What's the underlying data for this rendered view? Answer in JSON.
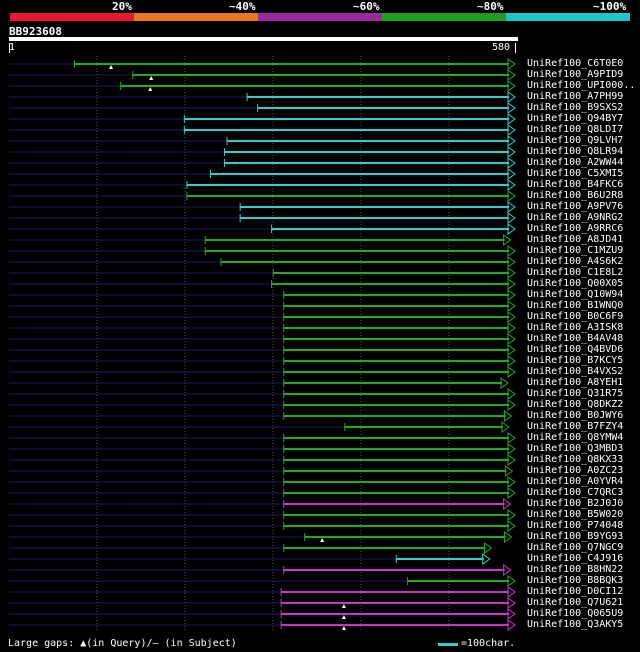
{
  "legend": [
    {
      "label": "20%",
      "color": "#e8192c"
    },
    {
      "label": "~40%",
      "color": "#e87820"
    },
    {
      "label": "~60%",
      "color": "#9c2a9e"
    },
    {
      "label": "~80%",
      "color": "#1e9e1e"
    },
    {
      "label": "~100%",
      "color": "#1ec8c8"
    }
  ],
  "query": {
    "id": "BB923608",
    "start": "1",
    "end": "580"
  },
  "colors": {
    "green": "#22aa22",
    "cyan": "#33cccc",
    "magenta": "#cc33cc",
    "dark": "#1a1a66",
    "grid": "#555555",
    "gap_marker": "#ffffff"
  },
  "hits": [
    {
      "name": "UniRef100_C6T0E0",
      "color": "green",
      "start": 76,
      "end": 580,
      "gaps": [
        118
      ]
    },
    {
      "name": "UniRef100_A9PID9",
      "color": "green",
      "start": 143,
      "end": 580,
      "gaps": [
        164
      ]
    },
    {
      "name": "UniRef100_UPI000..",
      "color": "green",
      "start": 129,
      "end": 580,
      "gaps": [
        163
      ]
    },
    {
      "name": "UniRef100_A7PH99",
      "color": "cyan",
      "start": 274,
      "end": 580,
      "gaps": []
    },
    {
      "name": "UniRef100_B9SXS2",
      "color": "cyan",
      "start": 286,
      "end": 580,
      "gaps": []
    },
    {
      "name": "UniRef100_Q94BY7",
      "color": "cyan",
      "start": 202,
      "end": 580,
      "gaps": []
    },
    {
      "name": "UniRef100_Q8LDI7",
      "color": "cyan",
      "start": 202,
      "end": 580,
      "gaps": []
    },
    {
      "name": "UniRef100_Q9LVH7",
      "color": "cyan",
      "start": 251,
      "end": 580,
      "gaps": []
    },
    {
      "name": "UniRef100_Q8LR94",
      "color": "cyan",
      "start": 248,
      "end": 580,
      "gaps": []
    },
    {
      "name": "UniRef100_A2WW44",
      "color": "cyan",
      "start": 248,
      "end": 580,
      "gaps": []
    },
    {
      "name": "UniRef100_C5XMI5",
      "color": "cyan",
      "start": 232,
      "end": 580,
      "gaps": []
    },
    {
      "name": "UniRef100_B4FKC6",
      "color": "cyan",
      "start": 205,
      "end": 580,
      "gaps": []
    },
    {
      "name": "UniRef100_B6U2R8",
      "color": "green",
      "start": 205,
      "end": 580,
      "gaps": []
    },
    {
      "name": "UniRef100_A9PV76",
      "color": "cyan",
      "start": 266,
      "end": 580,
      "gaps": []
    },
    {
      "name": "UniRef100_A9NRG2",
      "color": "cyan",
      "start": 266,
      "end": 580,
      "gaps": []
    },
    {
      "name": "UniRef100_A9RRC6",
      "color": "cyan",
      "start": 302,
      "end": 580,
      "gaps": []
    },
    {
      "name": "UniRef100_A8JD41",
      "color": "green",
      "start": 226,
      "end": 575,
      "gaps": []
    },
    {
      "name": "UniRef100_C1MZU9",
      "color": "green",
      "start": 226,
      "end": 580,
      "gaps": []
    },
    {
      "name": "UniRef100_A4S6K2",
      "color": "green",
      "start": 244,
      "end": 580,
      "gaps": []
    },
    {
      "name": "UniRef100_C1E8L2",
      "color": "green",
      "start": 304,
      "end": 580,
      "gaps": []
    },
    {
      "name": "UniRef100_Q00X05",
      "color": "green",
      "start": 302,
      "end": 580,
      "gaps": []
    },
    {
      "name": "UniRef100_Q10W94",
      "color": "green",
      "start": 316,
      "end": 580,
      "gaps": []
    },
    {
      "name": "UniRef100_B1WNQ0",
      "color": "green",
      "start": 316,
      "end": 580,
      "gaps": []
    },
    {
      "name": "UniRef100_B0C6F9",
      "color": "green",
      "start": 316,
      "end": 580,
      "gaps": []
    },
    {
      "name": "UniRef100_A3ISK8",
      "color": "green",
      "start": 316,
      "end": 580,
      "gaps": []
    },
    {
      "name": "UniRef100_B4AV48",
      "color": "green",
      "start": 316,
      "end": 580,
      "gaps": []
    },
    {
      "name": "UniRef100_Q4BVD6",
      "color": "green",
      "start": 316,
      "end": 580,
      "gaps": []
    },
    {
      "name": "UniRef100_B7KCY5",
      "color": "green",
      "start": 316,
      "end": 580,
      "gaps": []
    },
    {
      "name": "UniRef100_B4VXS2",
      "color": "green",
      "start": 316,
      "end": 580,
      "gaps": []
    },
    {
      "name": "UniRef100_A8YEH1",
      "color": "green",
      "start": 316,
      "end": 572,
      "gaps": []
    },
    {
      "name": "UniRef100_Q31R75",
      "color": "green",
      "start": 316,
      "end": 580,
      "gaps": []
    },
    {
      "name": "UniRef100_Q8DKZ2",
      "color": "green",
      "start": 316,
      "end": 580,
      "gaps": []
    },
    {
      "name": "UniRef100_B0JWY6",
      "color": "green",
      "start": 316,
      "end": 576,
      "gaps": []
    },
    {
      "name": "UniRef100_B7FZY4",
      "color": "green",
      "start": 386,
      "end": 573,
      "gaps": []
    },
    {
      "name": "UniRef100_Q8YMW4",
      "color": "green",
      "start": 316,
      "end": 580,
      "gaps": []
    },
    {
      "name": "UniRef100_Q3MBD3",
      "color": "green",
      "start": 316,
      "end": 580,
      "gaps": []
    },
    {
      "name": "UniRef100_Q8KX33",
      "color": "green",
      "start": 316,
      "end": 580,
      "gaps": []
    },
    {
      "name": "UniRef100_A0ZC23",
      "color": "green",
      "start": 316,
      "end": 577,
      "gaps": []
    },
    {
      "name": "UniRef100_A0YVR4",
      "color": "green",
      "start": 316,
      "end": 580,
      "gaps": []
    },
    {
      "name": "UniRef100_C7QRC3",
      "color": "green",
      "start": 316,
      "end": 580,
      "gaps": []
    },
    {
      "name": "UniRef100_B2J0J0",
      "color": "magenta",
      "start": 316,
      "end": 575,
      "gaps": []
    },
    {
      "name": "UniRef100_B5W020",
      "color": "green",
      "start": 316,
      "end": 580,
      "gaps": []
    },
    {
      "name": "UniRef100_P74048",
      "color": "green",
      "start": 316,
      "end": 580,
      "gaps": []
    },
    {
      "name": "UniRef100_B9YG93",
      "color": "green",
      "start": 340,
      "end": 576,
      "gaps": [
        360
      ]
    },
    {
      "name": "UniRef100_Q7NGC9",
      "color": "green",
      "start": 316,
      "end": 553,
      "gaps": []
    },
    {
      "name": "UniRef100_C4J916",
      "color": "cyan",
      "start": 445,
      "end": 551,
      "gaps": []
    },
    {
      "name": "UniRef100_B8HN22",
      "color": "magenta",
      "start": 316,
      "end": 575,
      "gaps": []
    },
    {
      "name": "UniRef100_B8BQK3",
      "color": "green",
      "start": 458,
      "end": 580,
      "gaps": []
    },
    {
      "name": "UniRef100_D0CI12",
      "color": "magenta",
      "start": 313,
      "end": 580,
      "gaps": []
    },
    {
      "name": "UniRef100_Q7U621",
      "color": "magenta",
      "start": 313,
      "end": 580,
      "gaps": [
        385
      ]
    },
    {
      "name": "UniRef100_Q065U9",
      "color": "magenta",
      "start": 313,
      "end": 580,
      "gaps": [
        385
      ]
    },
    {
      "name": "UniRef100_Q3AKY5",
      "color": "magenta",
      "start": 313,
      "end": 580,
      "gaps": [
        385
      ]
    }
  ],
  "footer": {
    "large_gaps_text": "Large gaps: ▲(in Query)/— (in Subject)",
    "scale_text": "=100char."
  }
}
